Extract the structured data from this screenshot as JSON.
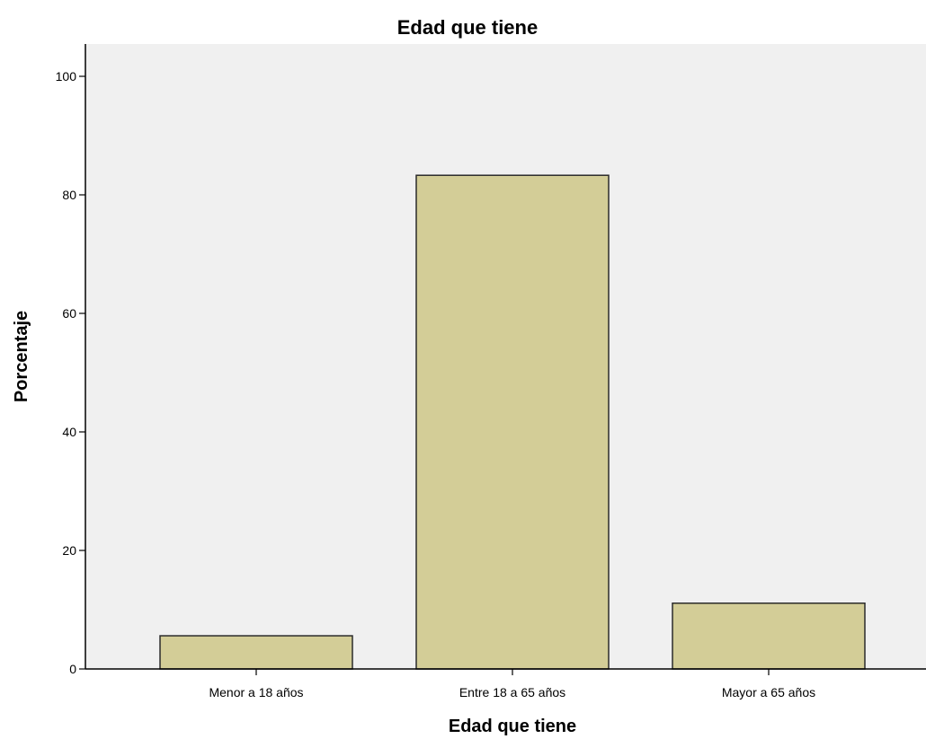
{
  "chart_data": {
    "type": "bar",
    "title": "Edad que tiene",
    "xlabel": "Edad que tiene",
    "ylabel": "Porcentaje",
    "categories": [
      "Menor a 18 años",
      "Entre 18 a 65 años",
      "Mayor a 65 años"
    ],
    "values": [
      5.6,
      83.3,
      11.1
    ],
    "ylim": [
      0,
      100
    ],
    "yticks": [
      0,
      20,
      40,
      60,
      80,
      100
    ],
    "grid": false,
    "legend": "none",
    "colors": {
      "bar_fill": "#d3cd97",
      "bar_stroke": "#2b2b2b",
      "plot_background": "#f0f0f0",
      "axis": "#000000"
    }
  }
}
